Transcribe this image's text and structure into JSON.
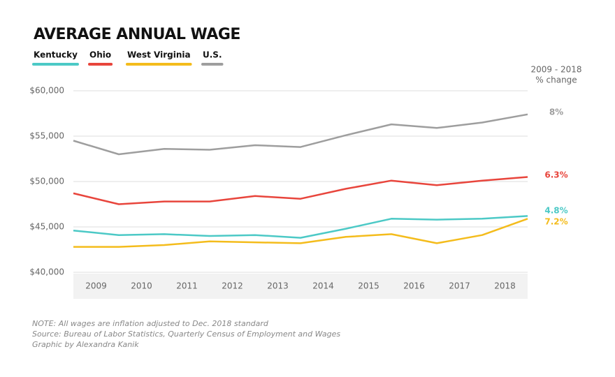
{
  "chart_data": {
    "type": "line",
    "title": "AVERAGE ANNUAL WAGE",
    "change_header": [
      "2009 - 2018",
      "% change"
    ],
    "x": [
      2008.5,
      2009.5,
      2010.5,
      2011.5,
      2012.5,
      2013.5,
      2014.5,
      2015.5,
      2016.5,
      2017.5,
      2018.5
    ],
    "xlim": [
      2008.5,
      2018.5
    ],
    "xticks": [
      2009,
      2010,
      2011,
      2012,
      2013,
      2014,
      2015,
      2016,
      2017,
      2018
    ],
    "ylim": [
      40000,
      60000
    ],
    "yticks": [
      {
        "value": 40000,
        "label": "$40,000"
      },
      {
        "value": 45000,
        "label": "$45,000"
      },
      {
        "value": 50000,
        "label": "$50,000"
      },
      {
        "value": 55000,
        "label": "$55,000"
      },
      {
        "value": 60000,
        "label": "$60,000"
      }
    ],
    "grid": true,
    "series": [
      {
        "name": "Kentucky",
        "color": "#4cc9c6",
        "end_label": "4.8%",
        "values": [
          44600,
          44100,
          44200,
          44000,
          44100,
          43800,
          44800,
          45900,
          45800,
          45900,
          46200
        ]
      },
      {
        "name": "Ohio",
        "color": "#e8453c",
        "end_label": "6.3%",
        "values": [
          48700,
          47500,
          47800,
          47800,
          48400,
          48100,
          49200,
          50100,
          49600,
          50100,
          50500
        ]
      },
      {
        "name": "West Virginia",
        "color": "#f4bc1c",
        "end_label": "7.2%",
        "values": [
          42800,
          42800,
          43000,
          43400,
          43300,
          43200,
          43900,
          44200,
          43200,
          44100,
          45900
        ]
      },
      {
        "name": "U.S.",
        "color": "#9e9e9e",
        "end_label": "8%",
        "values": [
          54500,
          53000,
          53600,
          53500,
          54000,
          53800,
          55100,
          56300,
          55900,
          56500,
          57400
        ]
      }
    ],
    "notes": [
      "NOTE: All wages are inflation adjusted to Dec. 2018 standard",
      "Source: Bureau of Labor Statistics, Quarterly Census of Employment and Wages",
      "Graphic by Alexandra Kanik"
    ]
  }
}
